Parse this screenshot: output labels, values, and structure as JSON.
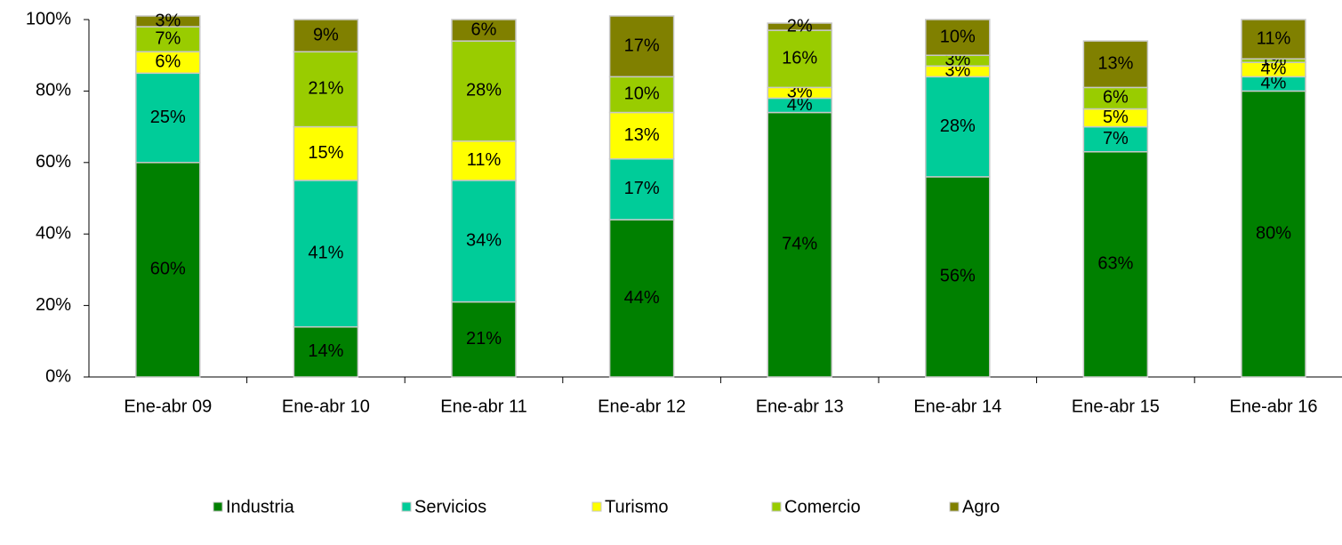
{
  "chart_data": {
    "type": "stacked_bar",
    "categories": [
      "Ene-abr 09",
      "Ene-abr 10",
      "Ene-abr 11",
      "Ene-abr 12",
      "Ene-abr 13",
      "Ene-abr 14",
      "Ene-abr 15",
      "Ene-abr 16"
    ],
    "series": [
      {
        "name": "Industria",
        "color": "#008000",
        "values": [
          60,
          14,
          21,
          44,
          74,
          56,
          63,
          80
        ],
        "value_labels": [
          "60%",
          "14%",
          "21%",
          "44%",
          "74%",
          "56%",
          "63%",
          "80%"
        ]
      },
      {
        "name": "Servicios",
        "color": "#00cc99",
        "values": [
          25,
          41,
          34,
          17,
          4,
          28,
          7,
          4
        ],
        "value_labels": [
          "25%",
          "41%",
          "34%",
          "17%",
          "4%",
          "28%",
          "7%",
          "4%"
        ]
      },
      {
        "name": "Turismo",
        "color": "#ffff00",
        "values": [
          6,
          15,
          11,
          13,
          3,
          3,
          5,
          4
        ],
        "value_labels": [
          "6%",
          "15%",
          "11%",
          "13%",
          "3%",
          "3%",
          "5%",
          "4%"
        ]
      },
      {
        "name": "Comercio",
        "color": "#99cc00",
        "values": [
          7,
          21,
          28,
          10,
          16,
          3,
          6,
          1
        ],
        "value_labels": [
          "7%",
          "21%",
          "28%",
          "10%",
          "16%",
          "3%",
          "6%",
          "1%"
        ]
      },
      {
        "name": "Agro",
        "color": "#808000",
        "values": [
          3,
          9,
          6,
          17,
          2,
          10,
          13,
          11
        ],
        "value_labels": [
          "3%",
          "9%",
          "6%",
          "17%",
          "2%",
          "10%",
          "13%",
          "11%"
        ]
      }
    ],
    "ylim": [
      0,
      100
    ],
    "yticks": [
      {
        "value": 0,
        "label": "0%"
      },
      {
        "value": 20,
        "label": "20%"
      },
      {
        "value": 40,
        "label": "40%"
      },
      {
        "value": 60,
        "label": "60%"
      },
      {
        "value": 80,
        "label": "80%"
      },
      {
        "value": 100,
        "label": "100%"
      }
    ],
    "legend": "bottom"
  }
}
